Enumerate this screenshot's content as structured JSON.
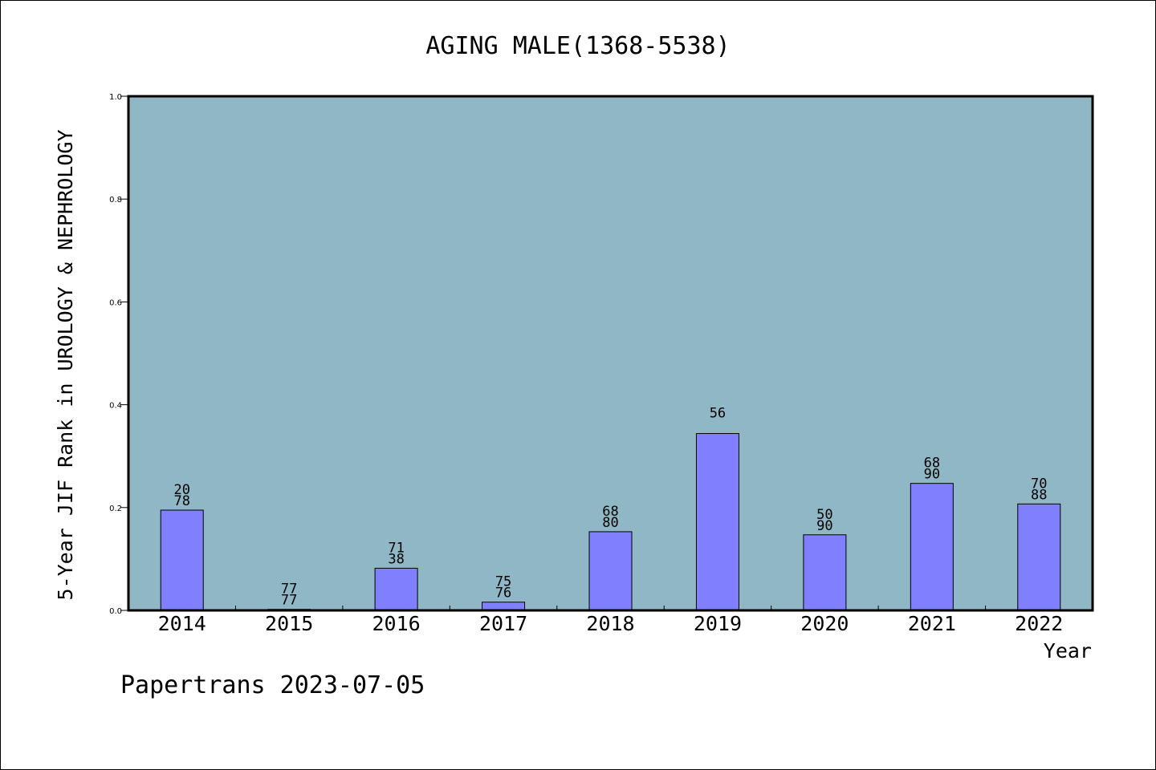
{
  "chart_data": {
    "type": "bar",
    "title": "AGING MALE(1368-5538)",
    "xlabel": "Year",
    "ylabel": "5-Year JIF Rank in UROLOGY & NEPHROLOGY",
    "ylim": [
      0.0,
      1.0
    ],
    "yticks": [
      "0.0",
      "0.2",
      "0.4",
      "0.6",
      "0.8",
      "1.0"
    ],
    "categories": [
      "2014",
      "2015",
      "2016",
      "2017",
      "2018",
      "2019",
      "2020",
      "2021",
      "2022"
    ],
    "values": [
      0.195,
      0.002,
      0.082,
      0.016,
      0.153,
      0.344,
      0.147,
      0.247,
      0.207
    ],
    "bar_labels": [
      [
        "20",
        "78"
      ],
      [
        "77",
        "77"
      ],
      [
        "71",
        "38"
      ],
      [
        "75",
        "76"
      ],
      [
        "68",
        "80"
      ],
      [
        "56"
      ],
      [
        "50",
        "90"
      ],
      [
        "68",
        "90"
      ],
      [
        "70",
        "88"
      ]
    ],
    "grid": false,
    "colors": {
      "bar": "#8080ff",
      "plot_bg": "#8fb7c5"
    }
  },
  "footer": {
    "text": "Papertrans 2023-07-05"
  }
}
